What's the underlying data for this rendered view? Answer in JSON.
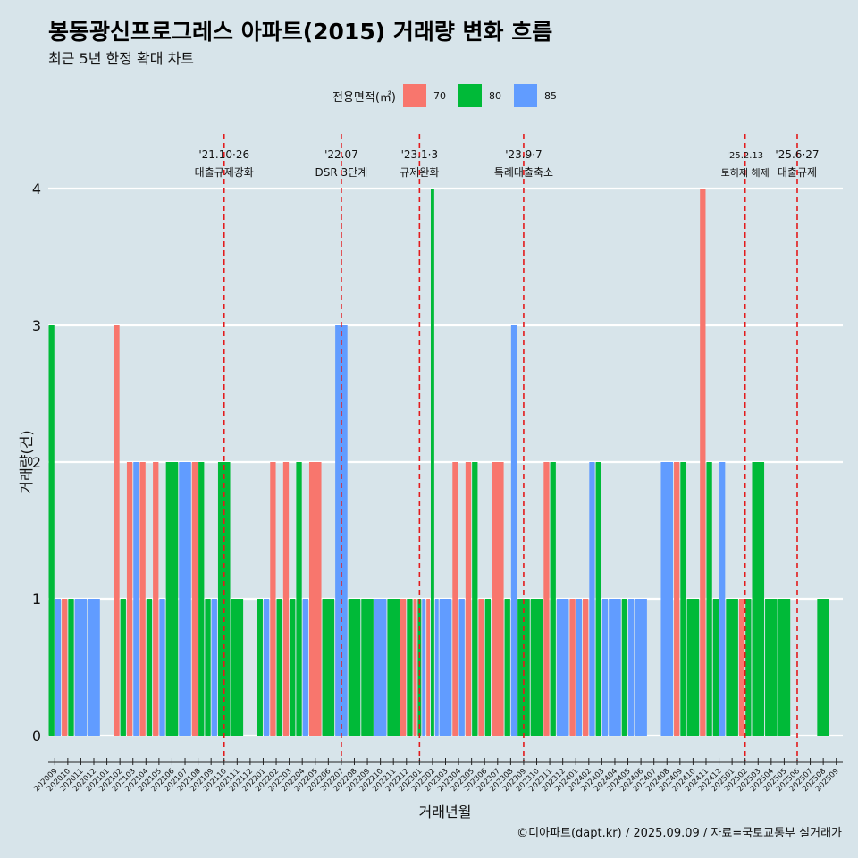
{
  "title": "봉동광신프로그레스 아파트(2015) 거래량 변화 흐름",
  "subtitle": "최근 5년 한정 확대 차트",
  "caption": "©디아파트(dapt.kr) / 2025.09.09 / 자료=국토교통부 실거래가",
  "legend": {
    "title": "전용면적(㎡)",
    "items": [
      {
        "label": "70",
        "color": "#F8766D"
      },
      {
        "label": "80",
        "color": "#00BA38"
      },
      {
        "label": "85",
        "color": "#619CFF"
      }
    ]
  },
  "chart_data": {
    "type": "bar",
    "xlabel": "거래년월",
    "ylabel": "거래량(건)",
    "ylim": [
      0,
      4
    ],
    "yticks": [
      0,
      1,
      2,
      3,
      4
    ],
    "grid": true,
    "legend_position": "top",
    "categories": [
      "202009",
      "202010",
      "202011",
      "202012",
      "202101",
      "202102",
      "202103",
      "202104",
      "202105",
      "202106",
      "202107",
      "202108",
      "202109",
      "202110",
      "202111",
      "202112",
      "202201",
      "202202",
      "202203",
      "202204",
      "202205",
      "202206",
      "202207",
      "202208",
      "202209",
      "202210",
      "202211",
      "202212",
      "202301",
      "202302",
      "202303",
      "202304",
      "202305",
      "202306",
      "202307",
      "202308",
      "202309",
      "202310",
      "202311",
      "202312",
      "202401",
      "202402",
      "202403",
      "202404",
      "202405",
      "202406",
      "202407",
      "202408",
      "202409",
      "202410",
      "202411",
      "202412",
      "202501",
      "202502",
      "202503",
      "202504",
      "202505",
      "202506",
      "202507",
      "202508",
      "202509"
    ],
    "series": [
      {
        "name": "70",
        "color": "#F8766D",
        "values": [
          0,
          1,
          0,
          0,
          0,
          3,
          2,
          2,
          2,
          0,
          0,
          2,
          0,
          0,
          0,
          0,
          0,
          2,
          2,
          0,
          2,
          0,
          0,
          0,
          0,
          0,
          0,
          1,
          1,
          1,
          0,
          2,
          2,
          1,
          2,
          0,
          0,
          0,
          2,
          0,
          1,
          1,
          0,
          0,
          0,
          0,
          0,
          0,
          2,
          0,
          4,
          0,
          0,
          1,
          0,
          0,
          0,
          0,
          0,
          0,
          0
        ]
      },
      {
        "name": "80",
        "color": "#00BA38",
        "values": [
          3,
          1,
          0,
          0,
          0,
          1,
          0,
          1,
          0,
          2,
          0,
          2,
          1,
          2,
          1,
          0,
          1,
          1,
          1,
          2,
          0,
          1,
          0,
          1,
          1,
          0,
          1,
          1,
          1,
          4,
          0,
          0,
          2,
          1,
          0,
          1,
          1,
          1,
          2,
          0,
          0,
          0,
          2,
          0,
          1,
          0,
          0,
          0,
          2,
          1,
          2,
          1,
          1,
          1,
          2,
          1,
          1,
          0,
          0,
          1,
          0
        ]
      },
      {
        "name": "85",
        "color": "#619CFF",
        "values": [
          1,
          0,
          1,
          1,
          0,
          0,
          2,
          0,
          1,
          0,
          2,
          0,
          1,
          0,
          0,
          0,
          1,
          0,
          0,
          1,
          0,
          0,
          3,
          0,
          0,
          1,
          0,
          0,
          1,
          1,
          1,
          1,
          0,
          0,
          0,
          3,
          0,
          0,
          0,
          1,
          1,
          2,
          1,
          1,
          1,
          1,
          0,
          2,
          0,
          0,
          0,
          2,
          0,
          0,
          0,
          0,
          0,
          0,
          0,
          0,
          0
        ]
      }
    ],
    "annotations": [
      {
        "date": "202110",
        "label": "'21.10·26",
        "label2": "대출규제강화"
      },
      {
        "date": "202207",
        "label": "'22.07",
        "label2": "DSR 3단계"
      },
      {
        "date": "202301",
        "label": "'23.1·3",
        "label2": "규제완화"
      },
      {
        "date": "202309",
        "label": "'23.9·7",
        "label2": "특례대출축소"
      },
      {
        "date": "202502",
        "label": "'25.2.13",
        "label2": "토허제 해제"
      },
      {
        "date": "202506",
        "label": "'25.6·27",
        "label2": "대출규제"
      }
    ]
  }
}
